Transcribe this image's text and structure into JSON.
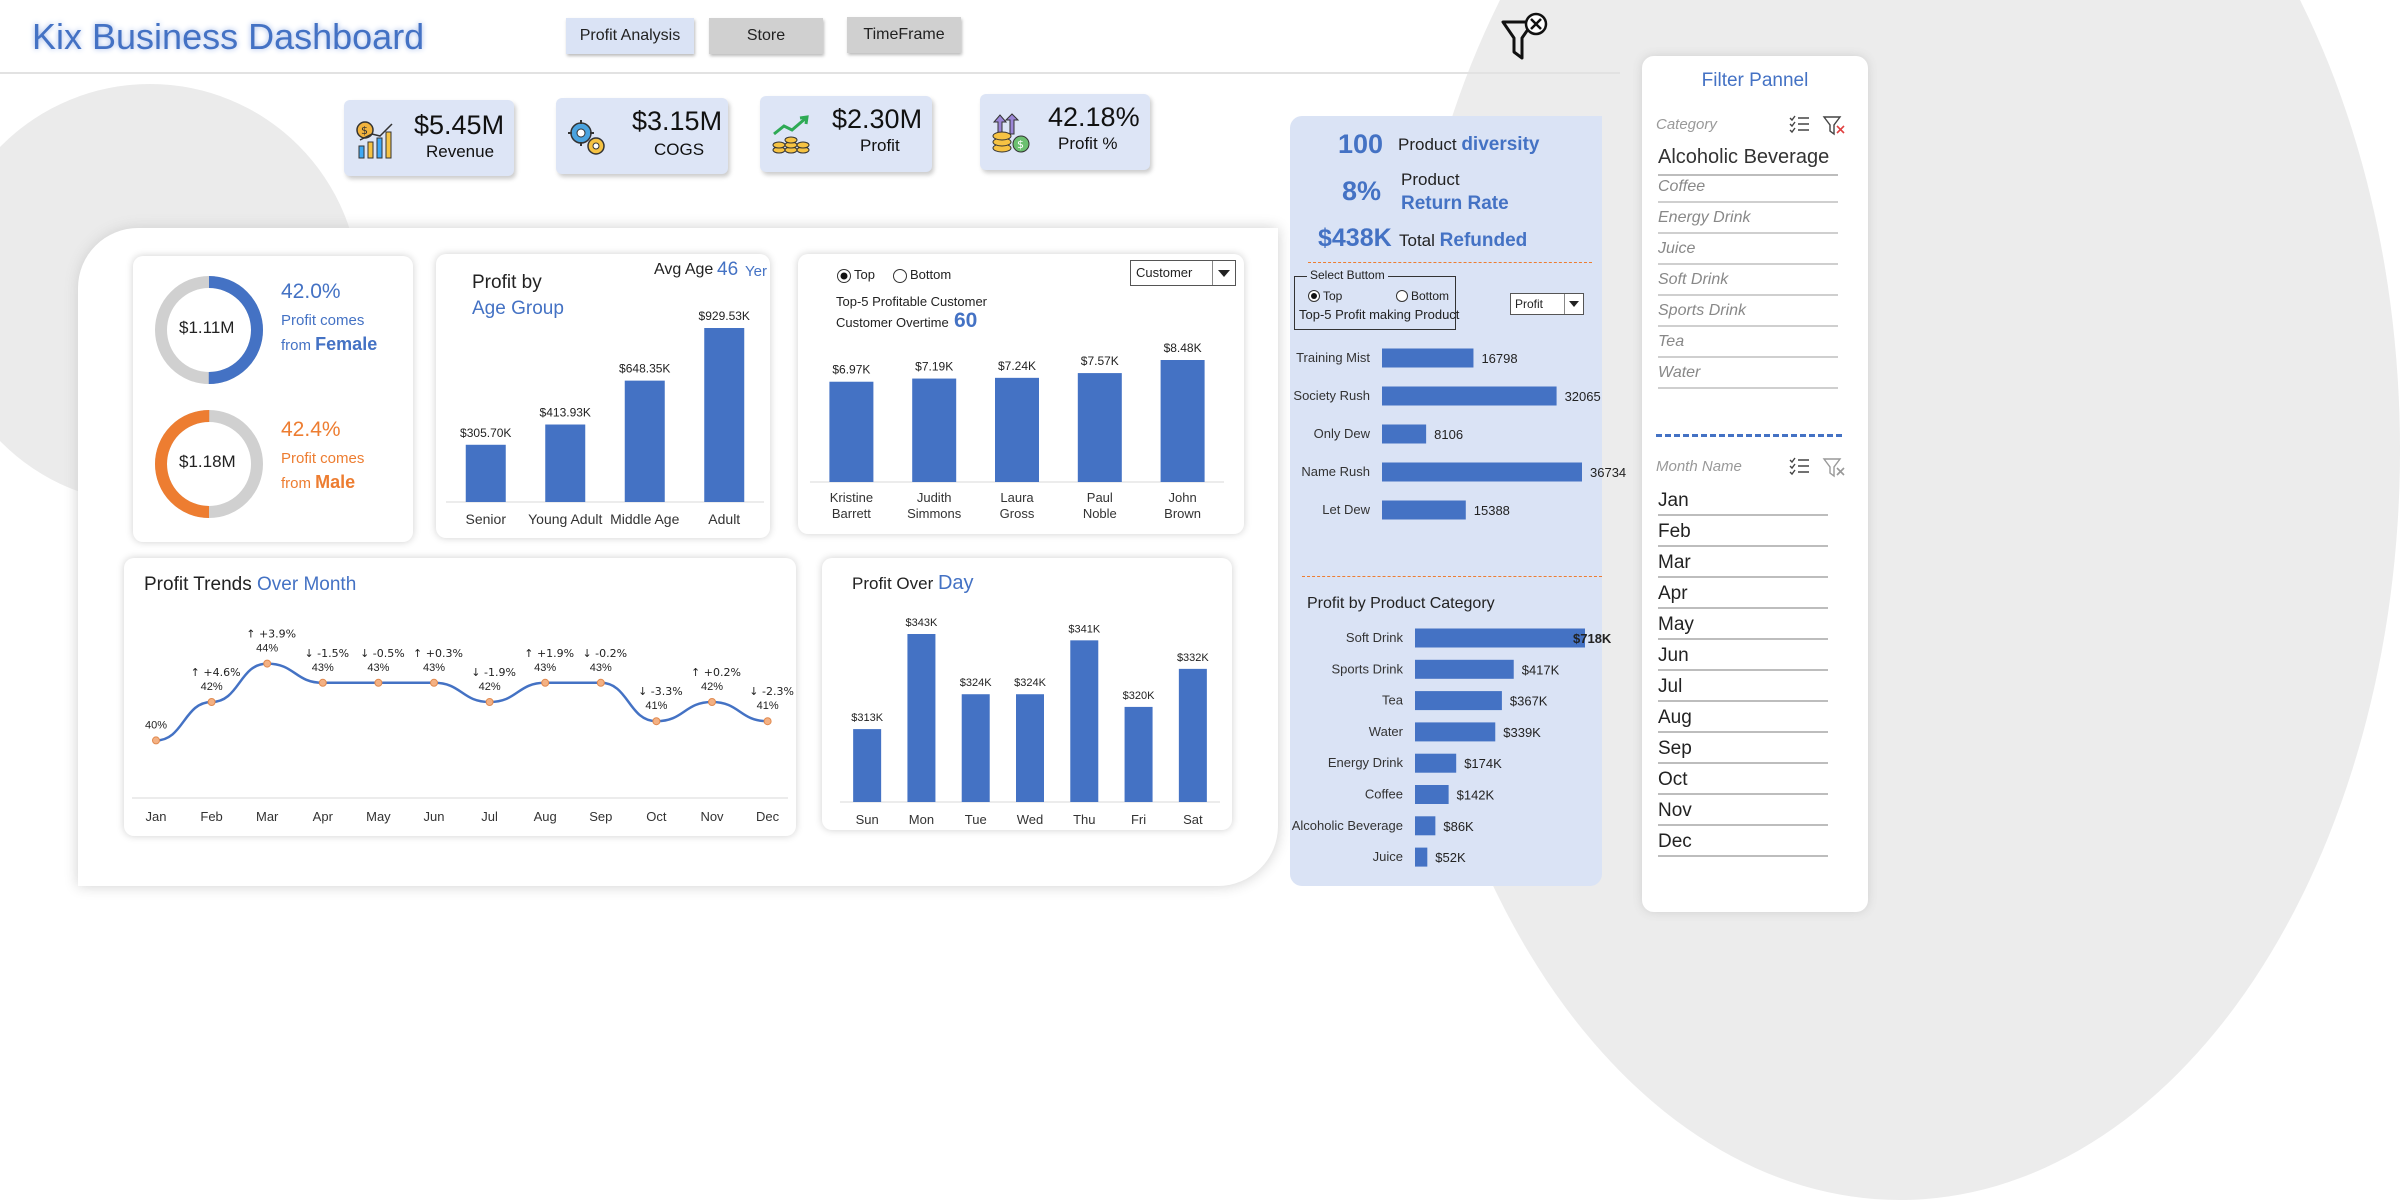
{
  "header": {
    "title": "Kix Business Dashboard",
    "nav": [
      "Profit Analysis",
      "Store",
      "TimeFrame"
    ]
  },
  "kpis": [
    {
      "value": "$5.45M",
      "label": "Revenue",
      "icon": "revenue-chart-icon"
    },
    {
      "value": "$3.15M",
      "label": "COGS",
      "icon": "gears-icon"
    },
    {
      "value": "$2.30M",
      "label": "Profit",
      "icon": "profit-growth-icon"
    },
    {
      "value": "42.18%",
      "label": "Profit %",
      "icon": "money-arrows-icon"
    }
  ],
  "gender": {
    "female": {
      "amount": "$1.11M",
      "pct": "42.0%",
      "line1": "Profit comes",
      "line2": "from",
      "gender": "Female",
      "fraction": 0.5
    },
    "male": {
      "amount": "$1.18M",
      "pct": "42.4%",
      "line1": "Profit comes",
      "line2": "from",
      "gender": "Male",
      "fraction": 0.5
    }
  },
  "age_group": {
    "title_line1": "Profit by",
    "title_line2": "Age Group",
    "avg_age_label": "Avg Age",
    "avg_age_value": "46",
    "avg_age_unit": "Yer",
    "categories": [
      "Senior",
      "Young Adult",
      "Middle Age",
      "Adult"
    ],
    "values": [
      305.7,
      413.93,
      648.35,
      929.53
    ],
    "labels": [
      "$305.70K",
      "$413.93K",
      "$648.35K",
      "$929.53K"
    ]
  },
  "customers": {
    "radio_top": "Top",
    "radio_bottom": "Bottom",
    "dropdown": "Customer",
    "subtitle": "Top-5 Profitable Customer",
    "overtime_label": "Customer Overtime",
    "overtime_value": "60",
    "categories": [
      "Kristine Barrett",
      "Judith Simmons",
      "Laura Gross",
      "Paul Noble",
      "John Brown"
    ],
    "values": [
      6.97,
      7.19,
      7.24,
      7.57,
      8.48
    ],
    "labels": [
      "$6.97K",
      "$7.19K",
      "$7.24K",
      "$7.57K",
      "$8.48K"
    ]
  },
  "trend": {
    "title": "Profit Trends",
    "title_accent": "Over Month",
    "months": [
      "Jan",
      "Feb",
      "Mar",
      "Apr",
      "May",
      "Jun",
      "Jul",
      "Aug",
      "Sep",
      "Oct",
      "Nov",
      "Dec"
    ],
    "values": [
      40,
      42,
      44,
      43,
      43,
      43,
      42,
      43,
      43,
      41,
      42,
      41
    ],
    "labels": [
      "40%",
      "42%",
      "44%",
      "43%",
      "43%",
      "43%",
      "42%",
      "43%",
      "43%",
      "41%",
      "42%",
      "41%"
    ],
    "changes": [
      "",
      "↑ +4.6%",
      "↑ +3.9%",
      "↓ -1.5%",
      "↓ -0.5%",
      "↑ +0.3%",
      "↓ -1.9%",
      "↑ +1.9%",
      "↓ -0.2%",
      "↓ -3.3%",
      "↑ +0.2%",
      "↓ -2.3%"
    ]
  },
  "day": {
    "title": "Profit Over",
    "title_accent": "Day",
    "categories": [
      "Sun",
      "Mon",
      "Tue",
      "Wed",
      "Thu",
      "Fri",
      "Sat"
    ],
    "values": [
      313,
      343,
      324,
      324,
      341,
      320,
      332
    ],
    "labels": [
      "$313K",
      "$343K",
      "$324K",
      "$324K",
      "$341K",
      "$320K",
      "$332K"
    ]
  },
  "product": {
    "diversity_value": "100",
    "diversity_label": "Product",
    "diversity_accent": "diversity",
    "return_value": "8%",
    "return_label": "Product",
    "return_accent": "Return Rate",
    "refund_value": "$438K",
    "refund_label": "Total",
    "refund_accent": "Refunded",
    "select_title": "Select Buttom",
    "radio_top": "Top",
    "radio_bottom": "Bottom",
    "subtitle": "Top-5  Profit making Product",
    "dropdown": "Profit",
    "categories": [
      "Training Mist",
      "Society Rush",
      "Only Dew",
      "Name Rush",
      "Let Dew"
    ],
    "values": [
      16798,
      32065,
      8106,
      36734,
      15388
    ],
    "labels": [
      "16798",
      "32065",
      "8106",
      "36734",
      "15388"
    ]
  },
  "product_category": {
    "title": "Profit by Product Category",
    "categories": [
      "Soft Drink",
      "Sports Drink",
      "Tea",
      "Water",
      "Energy Drink",
      "Coffee",
      "Alcoholic Beverage",
      "Juice"
    ],
    "values": [
      718,
      417,
      367,
      339,
      174,
      142,
      86,
      52
    ],
    "labels": [
      "$718K",
      "$417K",
      "$367K",
      "$339K",
      "$174K",
      "$142K",
      "$86K",
      "$52K"
    ]
  },
  "filter_panel": {
    "title": "Filter Pannel",
    "category_label": "Category",
    "categories": [
      "Alcoholic Beverage",
      "Coffee",
      "Energy Drink",
      "Juice",
      "Soft Drink",
      "Sports Drink",
      "Tea",
      "Water"
    ],
    "month_label": "Month Name",
    "months": [
      "Jan",
      "Feb",
      "Mar",
      "Apr",
      "May",
      "Jun",
      "Jul",
      "Aug",
      "Sep",
      "Oct",
      "Nov",
      "Dec"
    ]
  },
  "colors": {
    "accent": "#4472c4",
    "orange": "#ed7d31",
    "panel": "#dae3f5",
    "marker": "#f4b183"
  },
  "chart_data": [
    {
      "type": "bar",
      "title": "Profit by Age Group",
      "categories": [
        "Senior",
        "Young Adult",
        "Middle Age",
        "Adult"
      ],
      "values": [
        305.7,
        413.93,
        648.35,
        929.53
      ]
    },
    {
      "type": "bar",
      "title": "Top-5 Profitable Customer",
      "categories": [
        "Kristine Barrett",
        "Judith Simmons",
        "Laura Gross",
        "Paul Noble",
        "John Brown"
      ],
      "values": [
        6.97,
        7.19,
        7.24,
        7.57,
        8.48
      ]
    },
    {
      "type": "line",
      "title": "Profit Trends Over Month",
      "x": [
        "Jan",
        "Feb",
        "Mar",
        "Apr",
        "May",
        "Jun",
        "Jul",
        "Aug",
        "Sep",
        "Oct",
        "Nov",
        "Dec"
      ],
      "values": [
        40,
        42,
        44,
        43,
        43,
        43,
        42,
        43,
        43,
        41,
        42,
        41
      ]
    },
    {
      "type": "bar",
      "title": "Profit Over Day",
      "categories": [
        "Sun",
        "Mon",
        "Tue",
        "Wed",
        "Thu",
        "Fri",
        "Sat"
      ],
      "values": [
        313,
        343,
        324,
        324,
        341,
        320,
        332
      ]
    },
    {
      "type": "bar",
      "title": "Top-5 Profit making Product",
      "categories": [
        "Training Mist",
        "Society Rush",
        "Only Dew",
        "Name Rush",
        "Let Dew"
      ],
      "values": [
        16798,
        32065,
        8106,
        36734,
        15388
      ]
    },
    {
      "type": "bar",
      "title": "Profit by Product Category",
      "categories": [
        "Soft Drink",
        "Sports Drink",
        "Tea",
        "Water",
        "Energy Drink",
        "Coffee",
        "Alcoholic Beverage",
        "Juice"
      ],
      "values": [
        718,
        417,
        367,
        339,
        174,
        142,
        86,
        52
      ]
    }
  ]
}
